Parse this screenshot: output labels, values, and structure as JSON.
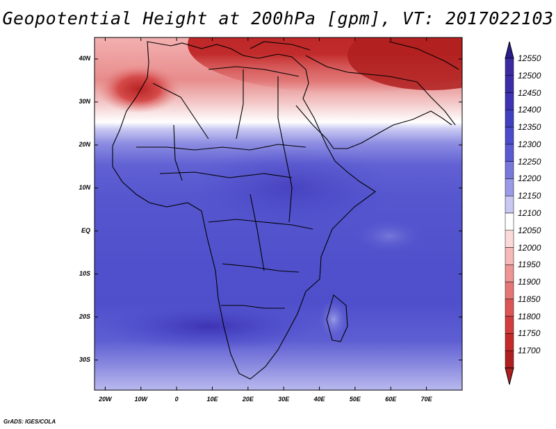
{
  "title": "Geopotential Height at 200hPa [gpm], VT: 2017022103",
  "credit": "GrADS: IGES/COLA",
  "map": {
    "variable": "Geopotential Height",
    "level": "200hPa",
    "units": "gpm",
    "valid_time": "2017022103",
    "lon_range": [
      -23,
      80
    ],
    "lat_range": [
      -37,
      45
    ],
    "lat_ticks": [
      {
        "value": 40,
        "label": "40N"
      },
      {
        "value": 30,
        "label": "30N"
      },
      {
        "value": 20,
        "label": "20N"
      },
      {
        "value": 10,
        "label": "10N"
      },
      {
        "value": 0,
        "label": "EQ"
      },
      {
        "value": -10,
        "label": "10S"
      },
      {
        "value": -20,
        "label": "20S"
      },
      {
        "value": -30,
        "label": "30S"
      }
    ],
    "lon_ticks": [
      {
        "value": -20,
        "label": "20W"
      },
      {
        "value": -10,
        "label": "10W"
      },
      {
        "value": 0,
        "label": "0"
      },
      {
        "value": 10,
        "label": "10E"
      },
      {
        "value": 20,
        "label": "20E"
      },
      {
        "value": 30,
        "label": "30E"
      },
      {
        "value": 40,
        "label": "40E"
      },
      {
        "value": 50,
        "label": "50E"
      },
      {
        "value": 60,
        "label": "60E"
      },
      {
        "value": 70,
        "label": "70E"
      }
    ]
  },
  "colorbar": {
    "levels": [
      {
        "label": "12550",
        "color": "#3c2aa0"
      },
      {
        "label": "12500",
        "color": "#3b2ca8"
      },
      {
        "label": "12450",
        "color": "#3d33b4"
      },
      {
        "label": "12400",
        "color": "#4040c0"
      },
      {
        "label": "12350",
        "color": "#4a4ccb"
      },
      {
        "label": "12300",
        "color": "#5a5ad2"
      },
      {
        "label": "12250",
        "color": "#7777dc"
      },
      {
        "label": "12200",
        "color": "#9a9ae6"
      },
      {
        "label": "12150",
        "color": "#c8c8f2"
      },
      {
        "label": "12100",
        "color": "#ffffff"
      },
      {
        "label": "12050",
        "color": "#fbdada"
      },
      {
        "label": "12000",
        "color": "#f6b8b8"
      },
      {
        "label": "11950",
        "color": "#ee9696"
      },
      {
        "label": "11900",
        "color": "#e57676"
      },
      {
        "label": "11850",
        "color": "#dc5656"
      },
      {
        "label": "11800",
        "color": "#d23c3c"
      },
      {
        "label": "11750",
        "color": "#c42a2a"
      },
      {
        "label": "11700",
        "color": "#b01f1f"
      }
    ],
    "top_arrow_color": "#2a1e8c",
    "bottom_arrow_color": "#b01f1f"
  }
}
